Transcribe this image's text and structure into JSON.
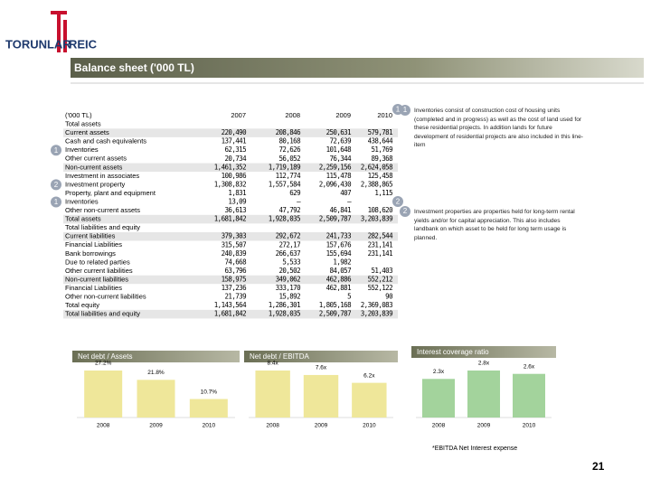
{
  "logo": {
    "left": "TORUNLAR",
    "right": "REIC"
  },
  "header": {
    "title": "Balance sheet ('000 TL)"
  },
  "table": {
    "columns": [
      "('000 TL)",
      "2007",
      "2008",
      "2009",
      "2010"
    ],
    "header_marker": "1",
    "rows": [
      {
        "label": "Total assets",
        "values": [
          null,
          null,
          null,
          null
        ]
      },
      {
        "label": "Current assets",
        "values": [
          "220,490",
          "208,846",
          "250,631",
          "579,781"
        ]
      },
      {
        "label": "Cash and cash equivalents",
        "values": [
          "137,441",
          "80,168",
          "72,639",
          "438,644"
        ]
      },
      {
        "label": "Inventories",
        "values": [
          "62,315",
          "72,626",
          "101,648",
          "51,769"
        ],
        "marker": "1"
      },
      {
        "label": "Other current assets",
        "values": [
          "20,734",
          "56,052",
          "76,344",
          "89,368"
        ]
      },
      {
        "label": "Non-current assets",
        "values": [
          "1,461,352",
          "1,719,189",
          "2,259,156",
          "2,624,058"
        ]
      },
      {
        "label": "Investment in associates",
        "values": [
          "100,986",
          "112,774",
          "115,478",
          "125,458"
        ]
      },
      {
        "label": "Investment property",
        "values": [
          "1,308,832",
          "1,557,584",
          "2,096,430",
          "2,388,865"
        ],
        "marker": "2"
      },
      {
        "label": "Property, plant and equipment",
        "values": [
          "1,831",
          "629",
          "407",
          "1,115"
        ]
      },
      {
        "label": "Inventories",
        "values": [
          "13,09",
          "–",
          "–",
          null
        ],
        "marker": "1"
      },
      {
        "label": "Other non-current assets",
        "values": [
          "36,613",
          "47,792",
          "46,841",
          "108,620"
        ],
        "end_marker": "2"
      },
      {
        "label": "Total assets",
        "values": [
          "1,681,842",
          "1,928,035",
          "2,509,787",
          "3,203,839"
        ]
      },
      {
        "label": "Total liabilities and equity",
        "values": [
          null,
          null,
          null,
          null
        ]
      },
      {
        "label": "Current liabilities",
        "values": [
          "379,303",
          "292,672",
          "241,733",
          "282,544"
        ]
      },
      {
        "label": "Financial Liabilities",
        "values": [
          "315,507",
          "272,17",
          "157,676",
          "231,141"
        ]
      },
      {
        "label": " Bank borrowings",
        "values": [
          "240,839",
          "266,637",
          "155,694",
          "231,141"
        ]
      },
      {
        "label": "Due to related parties",
        "values": [
          "74,668",
          "5,533",
          "1,982",
          null
        ]
      },
      {
        "label": "Other current liabilities",
        "values": [
          "63,796",
          "20,502",
          "84,057",
          "51,403"
        ]
      },
      {
        "label": "Non-current liabilities",
        "values": [
          "158,975",
          "349,062",
          "462,886",
          "552,212"
        ]
      },
      {
        "label": "Financial Liabilities",
        "values": [
          "137,236",
          "333,170",
          "462,881",
          "552,122"
        ]
      },
      {
        "label": "Other non-current liabilities",
        "values": [
          "21,739",
          "15,892",
          "5",
          "90"
        ]
      },
      {
        "label": "Total equity",
        "values": [
          "1,143,564",
          "1,286,301",
          "1,805,168",
          "2,369,083"
        ]
      },
      {
        "label": "Total liabilities and equity",
        "values": [
          "1,681,842",
          "1,928,035",
          "2,509,787",
          "3,203,839"
        ]
      }
    ]
  },
  "notes": [
    {
      "marker": "1",
      "text": "Inventories consist of construction cost of housing units (completed and in progress) as well as the cost of land used for these residential projects. In addition lands for future development of residential projects are also included in this line-item"
    },
    {
      "marker": "2",
      "text": "Investment properties are properties held for long-term rental yields and/or for capital appreciation. This also includes landbank on which asset to be held for long term usage is planned."
    }
  ],
  "chart_data": [
    {
      "type": "bar",
      "title": "Net debt / Assets",
      "categories": [
        "2008",
        "2009",
        "2010"
      ],
      "values": [
        27.2,
        21.8,
        10.7
      ],
      "value_labels": [
        "27.2%",
        "21.8%",
        "10.7%"
      ],
      "color": "#efe79a"
    },
    {
      "type": "bar",
      "title": "Net debt / EBITDA",
      "categories": [
        "2008",
        "2009",
        "2010"
      ],
      "values": [
        8.4,
        7.6,
        6.2
      ],
      "value_labels": [
        "8.4x",
        "7.6x",
        "6.2x"
      ],
      "color": "#efe79a"
    },
    {
      "type": "bar",
      "title": "Interest coverage ratio",
      "categories": [
        "2008",
        "2009",
        "2010"
      ],
      "values": [
        2.3,
        2.8,
        2.6
      ],
      "value_labels": [
        "2.3x",
        "2.8x",
        "2.6x"
      ],
      "color": "#a3d39c"
    }
  ],
  "footnote": "*EBITDA Net Interest expense",
  "page_number": "21"
}
